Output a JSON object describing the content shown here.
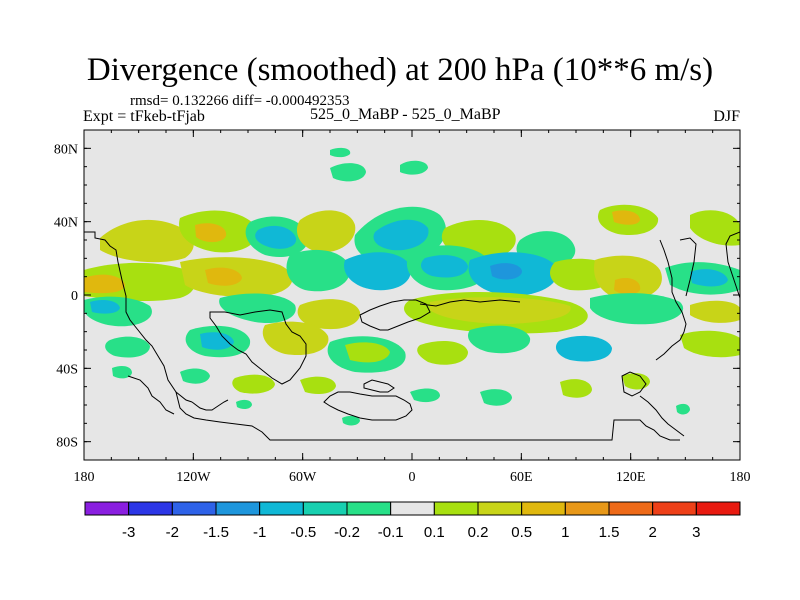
{
  "title": "Divergence (smoothed) at 200 hPa (10**6 m/s)",
  "stats_line": "rmsd= 0.132266  diff= -0.000492353",
  "experiment": "Expt = tFkeb-tFjab",
  "case_label": "525_0_MaBP - 525_0_MaBP",
  "season": "DJF",
  "lat_labels": [
    "80N",
    "40N",
    "0",
    "40S",
    "80S"
  ],
  "lon_labels": [
    "180",
    "120W",
    "60W",
    "0",
    "60E",
    "120E",
    "180"
  ],
  "colorbar": {
    "labels": [
      "-3",
      "-2",
      "-1.5",
      "-1",
      "-0.5",
      "-0.2",
      "-0.1",
      "0.1",
      "0.2",
      "0.5",
      "1",
      "1.5",
      "2",
      "3"
    ],
    "colors": [
      "#8a1fe0",
      "#2c36e6",
      "#2e62e8",
      "#1e96dc",
      "#10b8d6",
      "#18d0b0",
      "#28e088",
      "#e6e6e6",
      "#a8e010",
      "#c8d418",
      "#e0b80e",
      "#e89818",
      "#ee6a18",
      "#ee4018",
      "#e81a10"
    ]
  },
  "background_color": "#e6e6e6"
}
